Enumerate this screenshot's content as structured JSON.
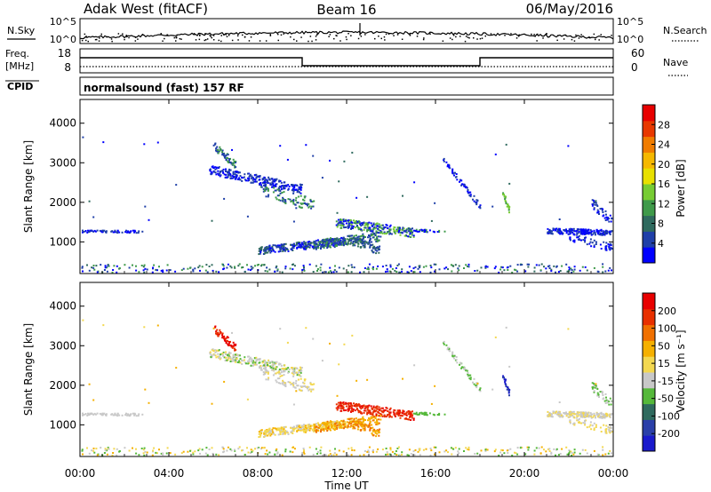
{
  "header": {
    "station": "Adak West (fitACF)",
    "beam": "Beam 16",
    "date": "06/May/2016"
  },
  "status_panels": {
    "nsky_label": "N.Sky",
    "nsearch_label": "N.Search",
    "noise_tick_top": "10^5",
    "noise_tick_bottom": "10^0",
    "freq_label": "Freq.",
    "freq_unit": "[MHz]",
    "freq_tick_top": "18",
    "freq_tick_bottom": "8",
    "nave_label": "Nave",
    "nave_tick_top": "60",
    "nave_tick_bottom": "0",
    "cpid_label": "CPID",
    "cpid_text": "normalsound (fast) 157 RF"
  },
  "chart_data": [
    {
      "type": "heatmap",
      "name": "power-panel",
      "ylabel": "Slant Range [km]",
      "xlabel": "Time UT",
      "xlim": [
        0,
        24
      ],
      "ylim": [
        200,
        4600
      ],
      "y_ticks": [
        1000,
        2000,
        3000,
        4000
      ],
      "colorbar": {
        "label": "Power [dB]",
        "ticks": [
          "28",
          "24",
          "20",
          "16",
          "12",
          "8",
          "4"
        ],
        "colors": [
          "#0000ff",
          "#1f3fa8",
          "#2f6a5e",
          "#3f9a4a",
          "#77cc33",
          "#e8e000",
          "#f5b800",
          "#f07c00",
          "#e83800",
          "#e80000"
        ]
      }
    },
    {
      "type": "heatmap",
      "name": "velocity-panel",
      "ylabel": "Slant Range [km]",
      "xlabel": "Time UT",
      "xlim": [
        0,
        24
      ],
      "ylim": [
        200,
        4600
      ],
      "y_ticks": [
        1000,
        2000,
        3000,
        4000
      ],
      "colorbar": {
        "label": "Velocity [m s⁻¹]",
        "ticks": [
          "200",
          "100",
          "50",
          "15",
          "-15",
          "-50",
          "-100",
          "-200"
        ],
        "colors": [
          "#1a1acc",
          "#2a3fa8",
          "#2f6a5e",
          "#55b83a",
          "#c8c8c8",
          "#f3d850",
          "#f5b000",
          "#f07000",
          "#e83000",
          "#e80000"
        ]
      }
    }
  ],
  "time_axis": {
    "ticks": [
      "00:00",
      "04:00",
      "08:00",
      "12:00",
      "16:00",
      "20:00",
      "00:00"
    ],
    "label": "Time UT"
  }
}
